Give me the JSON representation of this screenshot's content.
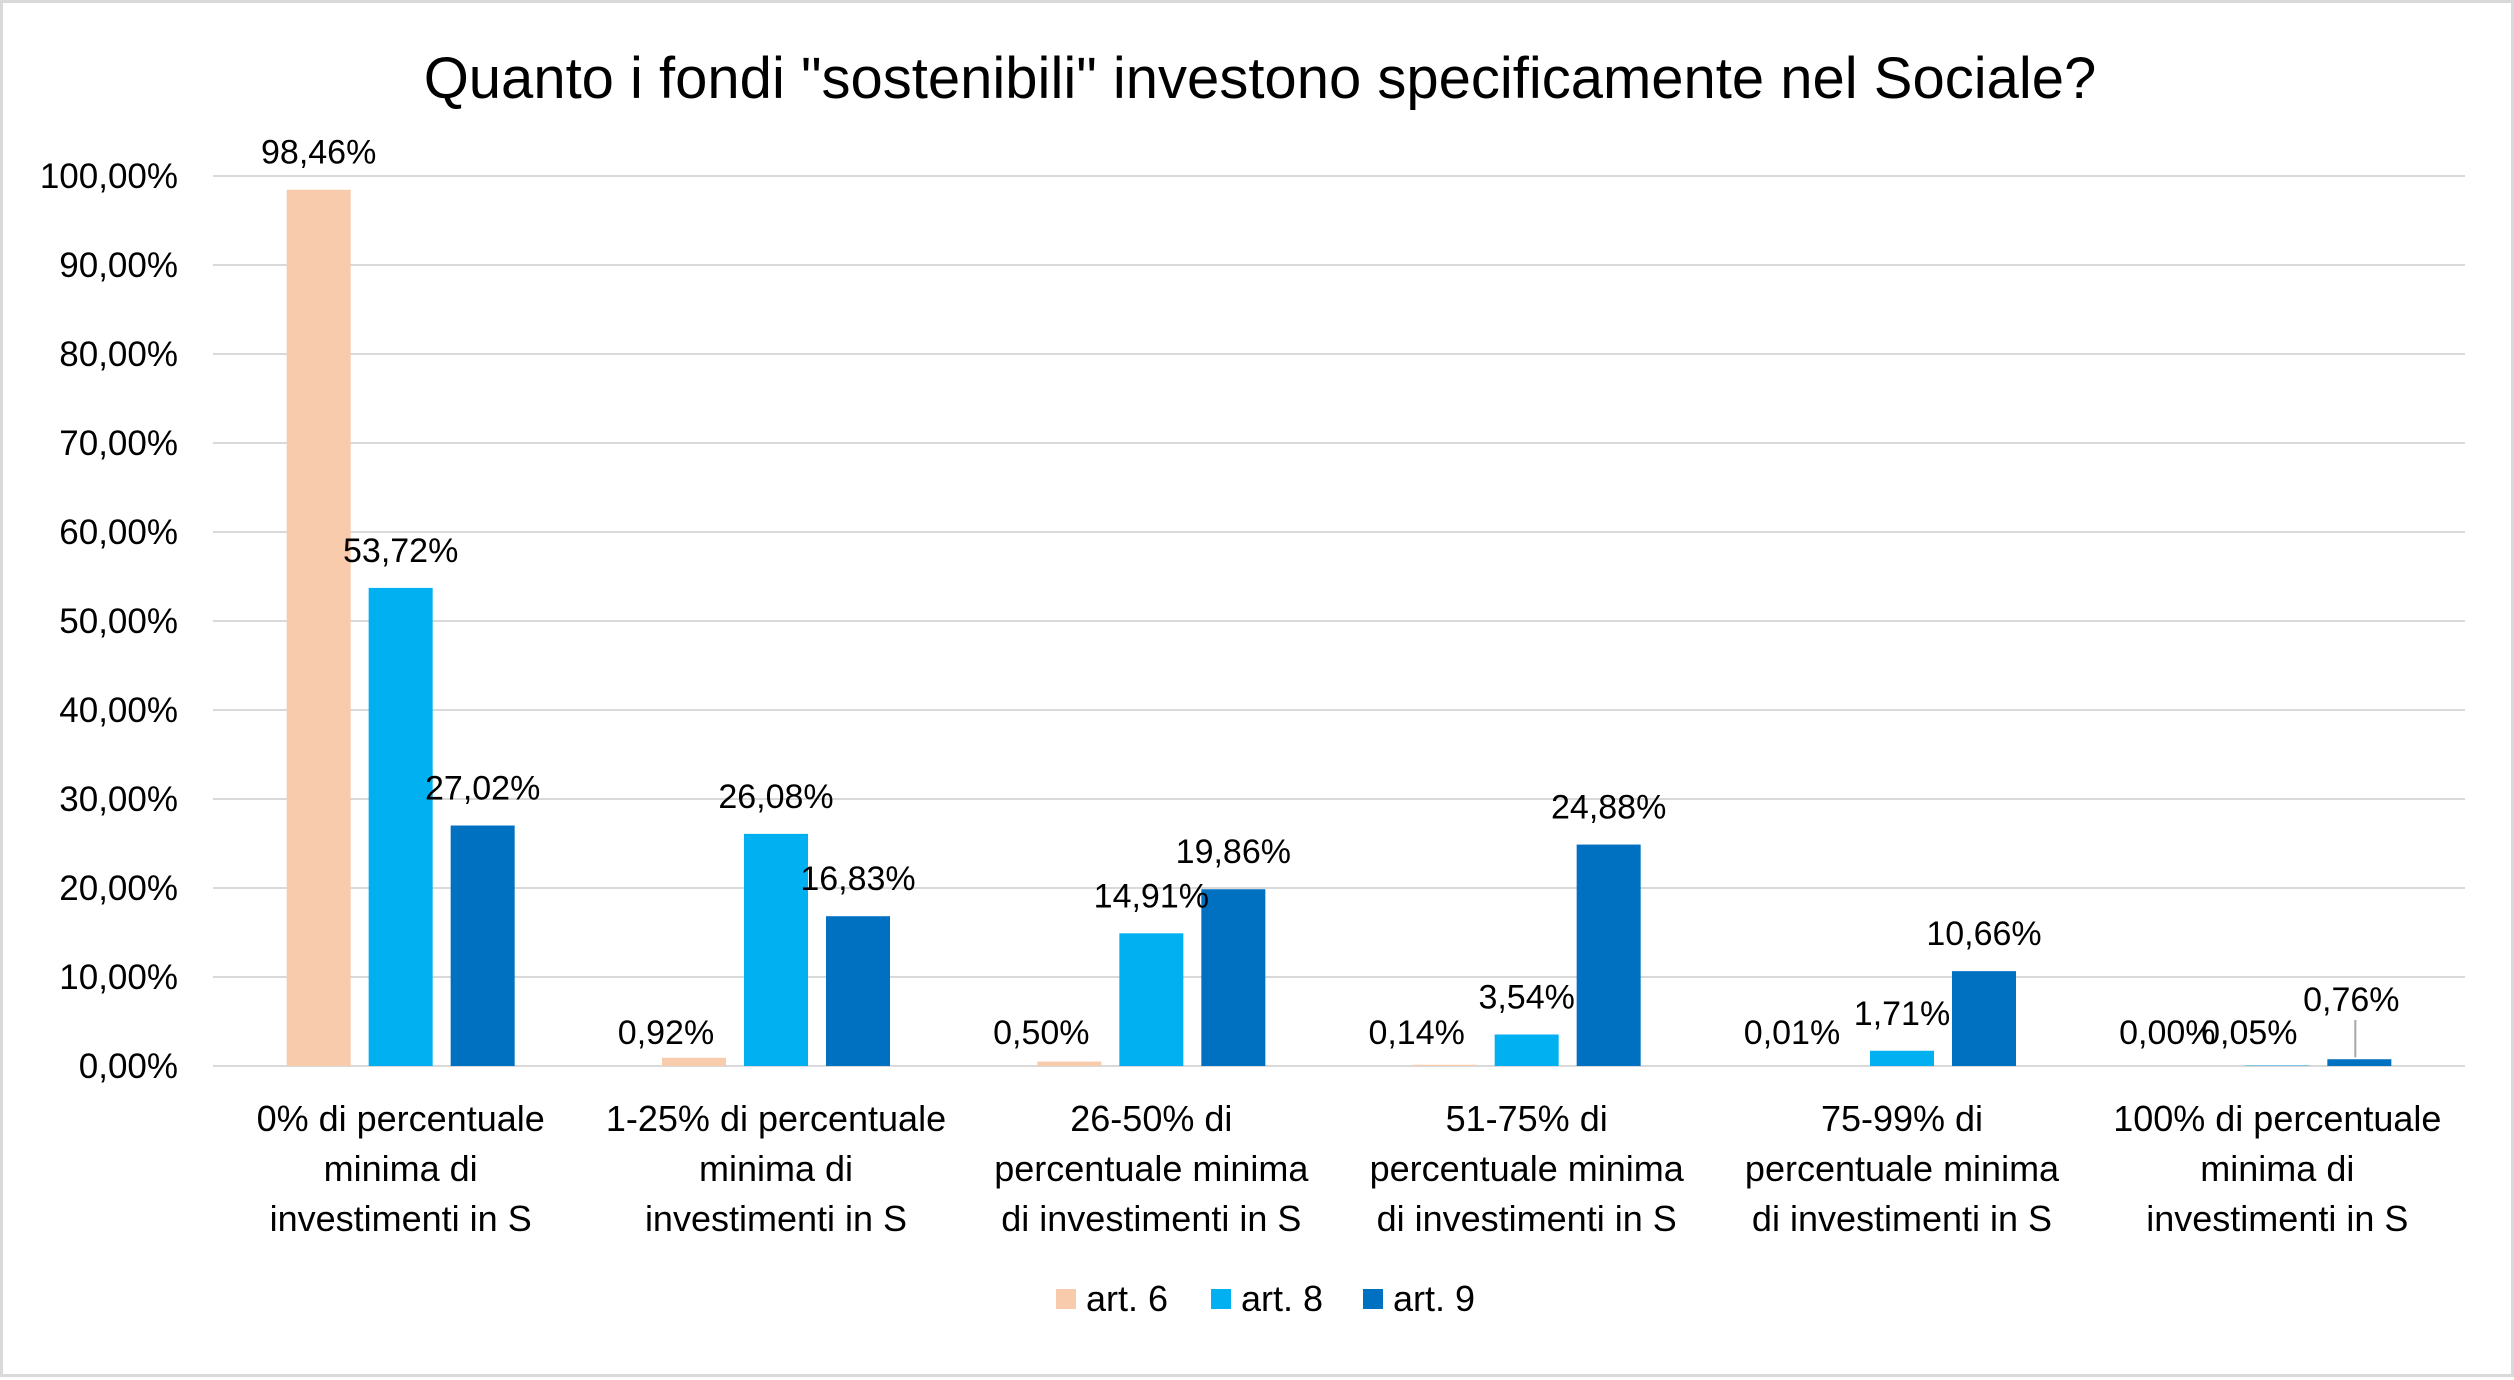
{
  "chart_data": {
    "type": "bar",
    "title": "Quanto i fondi \"sostenibili\" investono specificamente nel Sociale?",
    "xlabel": "",
    "ylabel": "",
    "ylim": [
      0,
      100
    ],
    "y_ticks": [
      "0,00%",
      "10,00%",
      "20,00%",
      "30,00%",
      "40,00%",
      "50,00%",
      "60,00%",
      "70,00%",
      "80,00%",
      "90,00%",
      "100,00%"
    ],
    "grid": true,
    "legend_position": "bottom",
    "categories": [
      [
        "0% di percentuale",
        "minima di",
        "investimenti in S"
      ],
      [
        "1-25% di percentuale",
        "minima di",
        "investimenti in S"
      ],
      [
        "26-50% di",
        "percentuale minima",
        "di investimenti in S"
      ],
      [
        "51-75% di",
        "percentuale minima",
        "di investimenti in S"
      ],
      [
        "75-99% di",
        "percentuale minima",
        "di investimenti in S"
      ],
      [
        "100% di percentuale",
        "minima di",
        "investimenti in S"
      ]
    ],
    "series": [
      {
        "name": "art. 6",
        "color": "#f8cbad",
        "values": [
          98.46,
          0.92,
          0.5,
          0.14,
          0.01,
          0.0
        ],
        "labels": [
          "98,46%",
          "0,92%",
          "0,50%",
          "0,14%",
          "0,01%",
          "0,00%"
        ]
      },
      {
        "name": "art. 8",
        "color": "#00b0f0",
        "values": [
          53.72,
          26.08,
          14.91,
          3.54,
          1.71,
          0.05
        ],
        "labels": [
          "53,72%",
          "26,08%",
          "14,91%",
          "3,54%",
          "1,71%",
          "0,05%"
        ]
      },
      {
        "name": "art. 9",
        "color": "#0070c0",
        "values": [
          27.02,
          16.83,
          19.86,
          24.88,
          10.66,
          0.76
        ],
        "labels": [
          "27,02%",
          "16,83%",
          "19,86%",
          "24,88%",
          "10,66%",
          "0,76%"
        ]
      }
    ]
  }
}
